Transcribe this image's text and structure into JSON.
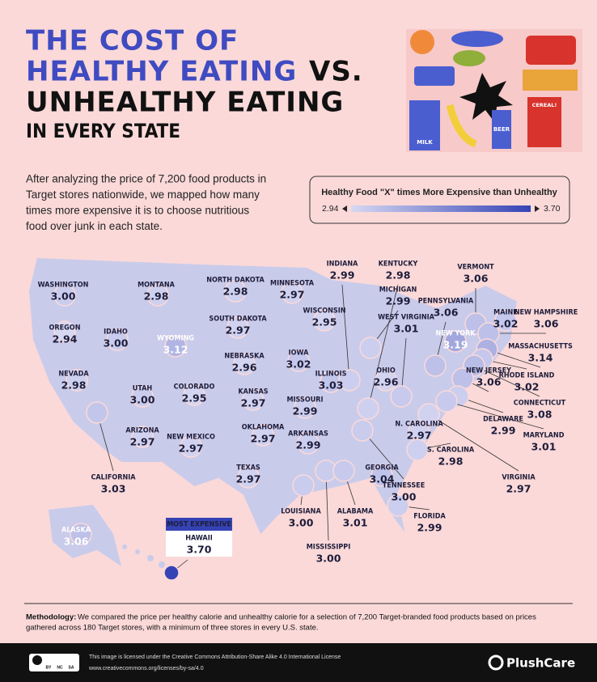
{
  "title": {
    "line1": "THE COST OF",
    "line2a": "HEALTHY EATING",
    "line2b": "VS.",
    "line3": "UNHEALTHY EATING",
    "line4": "IN EVERY STATE"
  },
  "intro": [
    "After analyzing the price of 7,200 food products in",
    "Target stores nationwide, we mapped how many",
    "times more expensive it is to choose nutritious",
    "food over junk in each state."
  ],
  "legend": {
    "title": "Healthy Food \"X\" times More Expensive than Unhealthy",
    "min": 2.94,
    "max": {
      "value": 3.7,
      "label": "3.70"
    }
  },
  "illustration_labels": [
    "MILK",
    "BEER",
    "CEREAL!"
  ],
  "states": [
    {
      "name": "WASHINGTON",
      "value": {
        "value": 3,
        "label": "3.00"
      }
    },
    {
      "name": "OREGON",
      "value": 2.94
    },
    {
      "name": "CALIFORNIA",
      "value": 3.03
    },
    {
      "name": "NEVADA",
      "value": 2.98
    },
    {
      "name": "IDAHO",
      "value": {
        "value": 3,
        "label": "3.00"
      }
    },
    {
      "name": "MONTANA",
      "value": 2.98
    },
    {
      "name": "WYOMING",
      "value": 3.12
    },
    {
      "name": "UTAH",
      "value": {
        "value": 3,
        "label": "3.00"
      }
    },
    {
      "name": "COLORADO",
      "value": 2.95
    },
    {
      "name": "ARIZONA",
      "value": 2.97
    },
    {
      "name": "NEW MEXICO",
      "value": 2.97
    },
    {
      "name": "NORTH DAKOTA",
      "value": 2.98
    },
    {
      "name": "SOUTH DAKOTA",
      "value": 2.97
    },
    {
      "name": "NEBRASKA",
      "value": 2.96
    },
    {
      "name": "KANSAS",
      "value": 2.97
    },
    {
      "name": "OKLAHOMA",
      "value": 2.97
    },
    {
      "name": "TEXAS",
      "value": 2.97
    },
    {
      "name": "MINNESOTA",
      "value": 2.97
    },
    {
      "name": "IOWA",
      "value": 3.02
    },
    {
      "name": "MISSOURI",
      "value": 2.99
    },
    {
      "name": "ARKANSAS",
      "value": 2.99
    },
    {
      "name": "LOUISIANA",
      "value": {
        "value": 3,
        "label": "3.00"
      }
    },
    {
      "name": "WISCONSIN",
      "value": 2.95
    },
    {
      "name": "ILLINOIS",
      "value": 3.03
    },
    {
      "name": "MISSISSIPPI",
      "value": {
        "value": 3,
        "label": "3.00"
      }
    },
    {
      "name": "ALABAMA",
      "value": 3.01
    },
    {
      "name": "INDIANA",
      "value": 2.99
    },
    {
      "name": "KENTUCKY",
      "value": 2.98
    },
    {
      "name": "MICHIGAN",
      "value": 2.99
    },
    {
      "name": "TENNESSEE",
      "value": {
        "value": 3,
        "label": "3.00"
      }
    },
    {
      "name": "GEORGIA",
      "value": 3.04
    },
    {
      "name": "FLORIDA",
      "value": 2.99
    },
    {
      "name": "OHIO",
      "value": 2.96
    },
    {
      "name": "WEST VIRGINIA",
      "value": 3.01
    },
    {
      "name": "PENNSYLVANIA",
      "value": 3.06
    },
    {
      "name": "NEW YORK",
      "value": 3.19
    },
    {
      "name": "VERMONT",
      "value": 3.06
    },
    {
      "name": "MAINE",
      "value": 3.02
    },
    {
      "name": "NEW HAMPSHIRE",
      "value": 3.06
    },
    {
      "name": "MASSACHUSETTS",
      "value": 3.14
    },
    {
      "name": "RHODE ISLAND",
      "value": 3.02
    },
    {
      "name": "CONNECTICUT",
      "value": 3.08
    },
    {
      "name": "NEW JERSEY",
      "value": 3.06
    },
    {
      "name": "DELAWARE",
      "value": 2.99
    },
    {
      "name": "MARYLAND",
      "value": 3.01
    },
    {
      "name": "VIRGINIA",
      "value": 2.97
    },
    {
      "name": "N. CAROLINA",
      "value": 2.97
    },
    {
      "name": "S. CAROLINA",
      "value": 2.98
    },
    {
      "name": "ALASKA",
      "value": 3.06
    },
    {
      "name": "HAWAII",
      "value": {
        "value": 3.7,
        "label": "3.70"
      }
    }
  ],
  "badge": "MOST EXPENSIVE",
  "methodology": {
    "label": "Methodology:",
    "lines": [
      "We compared the price per healthy calorie and unhealthy calorie for a selection of 7,200 Target-branded food products based on prices",
      "gathered across 180 Target stores, with a minimum of three stores in every U.S. state."
    ]
  },
  "footer": {
    "cc_badge": [
      "BY",
      "NC",
      "SA"
    ],
    "license": "This image is licensed under the Creative Commons Attribution-Share Alike 4.0 International License",
    "url": "www.creativecommons.org/licenses/by-sa/4.0",
    "brand": "PlushCare"
  }
}
